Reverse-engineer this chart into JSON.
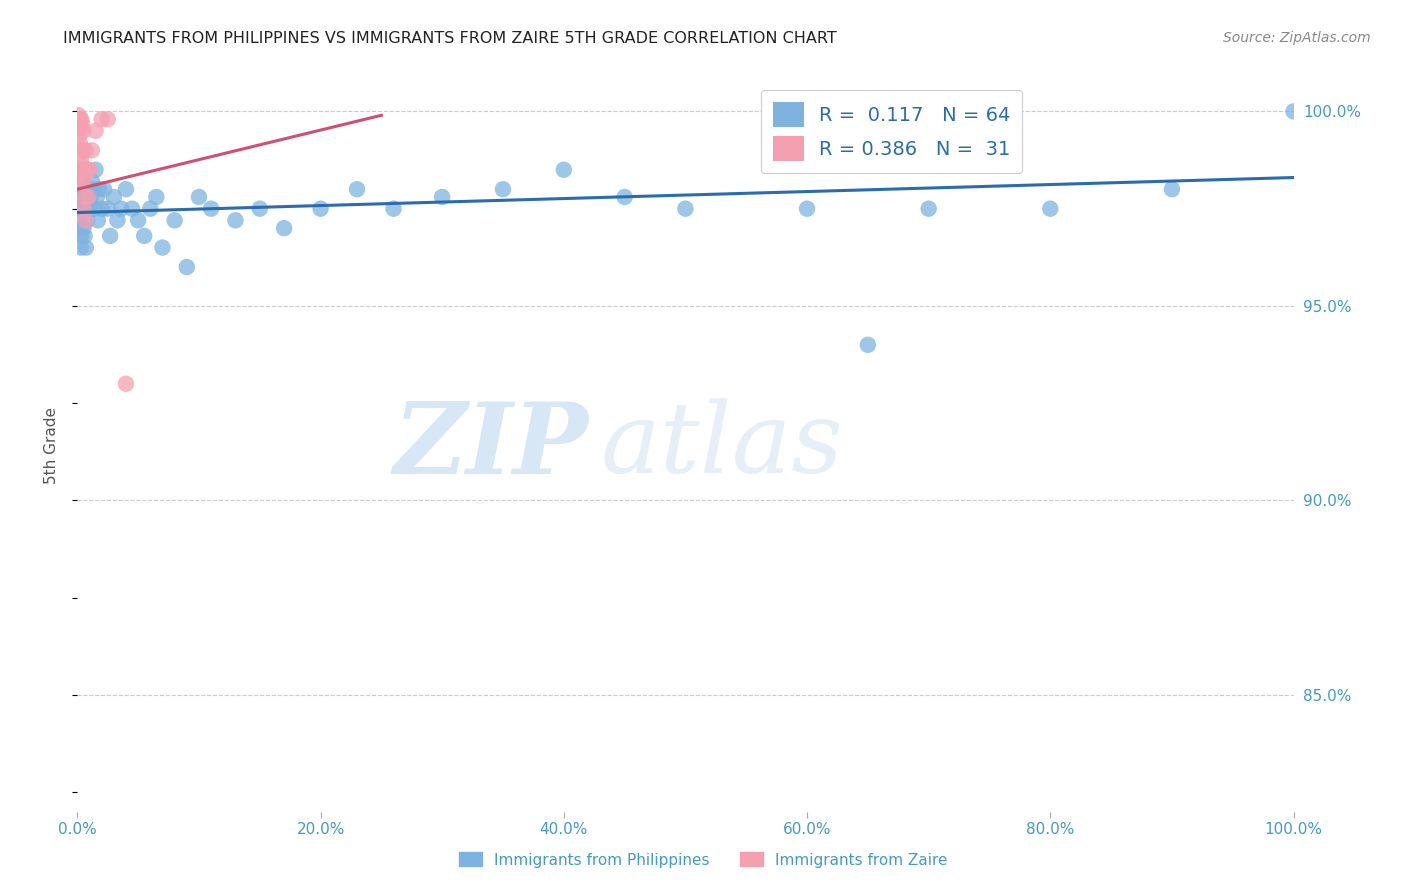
{
  "title": "IMMIGRANTS FROM PHILIPPINES VS IMMIGRANTS FROM ZAIRE 5TH GRADE CORRELATION CHART",
  "source": "Source: ZipAtlas.com",
  "xlabel_blue": "Immigrants from Philippines",
  "xlabel_pink": "Immigrants from Zaire",
  "ylabel": "5th Grade",
  "R_blue": 0.117,
  "N_blue": 64,
  "R_pink": 0.386,
  "N_pink": 31,
  "blue_color": "#7EB3E0",
  "pink_color": "#F4A0B0",
  "blue_line_color": "#2B6CB0",
  "pink_line_color": "#D05070",
  "x_blue": [
    0.001,
    0.001,
    0.002,
    0.002,
    0.002,
    0.003,
    0.003,
    0.003,
    0.003,
    0.004,
    0.004,
    0.005,
    0.005,
    0.006,
    0.006,
    0.007,
    0.007,
    0.008,
    0.008,
    0.009,
    0.01,
    0.011,
    0.012,
    0.013,
    0.014,
    0.015,
    0.016,
    0.017,
    0.018,
    0.02,
    0.022,
    0.025,
    0.027,
    0.03,
    0.033,
    0.036,
    0.04,
    0.045,
    0.05,
    0.055,
    0.06,
    0.065,
    0.07,
    0.08,
    0.09,
    0.1,
    0.11,
    0.13,
    0.15,
    0.17,
    0.2,
    0.23,
    0.26,
    0.3,
    0.35,
    0.4,
    0.45,
    0.5,
    0.6,
    0.65,
    0.7,
    0.8,
    0.9,
    1.0
  ],
  "y_blue": [
    0.978,
    0.972,
    0.98,
    0.975,
    0.985,
    0.968,
    0.975,
    0.98,
    0.965,
    0.978,
    0.982,
    0.97,
    0.975,
    0.98,
    0.968,
    0.965,
    0.978,
    0.975,
    0.972,
    0.98,
    0.975,
    0.978,
    0.982,
    0.98,
    0.975,
    0.985,
    0.978,
    0.972,
    0.98,
    0.975,
    0.98,
    0.975,
    0.968,
    0.978,
    0.972,
    0.975,
    0.98,
    0.975,
    0.972,
    0.968,
    0.975,
    0.978,
    0.965,
    0.972,
    0.96,
    0.978,
    0.975,
    0.972,
    0.975,
    0.97,
    0.975,
    0.98,
    0.975,
    0.978,
    0.98,
    0.985,
    0.978,
    0.975,
    0.975,
    0.94,
    0.975,
    0.975,
    0.98,
    1.0
  ],
  "x_pink": [
    0.001,
    0.001,
    0.001,
    0.002,
    0.002,
    0.002,
    0.002,
    0.003,
    0.003,
    0.003,
    0.003,
    0.003,
    0.004,
    0.004,
    0.004,
    0.005,
    0.005,
    0.005,
    0.005,
    0.006,
    0.006,
    0.007,
    0.007,
    0.008,
    0.009,
    0.01,
    0.012,
    0.015,
    0.02,
    0.025,
    0.04
  ],
  "y_pink": [
    0.997,
    0.998,
    0.999,
    0.996,
    0.994,
    0.992,
    0.998,
    0.99,
    0.988,
    0.985,
    0.996,
    0.998,
    0.982,
    0.986,
    0.997,
    0.975,
    0.982,
    0.99,
    0.995,
    0.978,
    0.985,
    0.972,
    0.99,
    0.985,
    0.978,
    0.985,
    0.99,
    0.995,
    0.998,
    0.998,
    0.93
  ],
  "blue_trend_x": [
    0.0,
    1.0
  ],
  "blue_trend_y": [
    0.974,
    0.983
  ],
  "pink_trend_x": [
    0.0,
    0.25
  ],
  "pink_trend_y": [
    0.98,
    0.999
  ],
  "xlim": [
    0.0,
    1.0
  ],
  "ylim": [
    0.82,
    1.008
  ],
  "yticks_right": [
    1.0,
    0.95,
    0.9,
    0.85
  ],
  "ytick_labels_right": [
    "100.0%",
    "95.0%",
    "90.0%",
    "85.0%"
  ],
  "xticks": [
    0.0,
    0.2,
    0.4,
    0.6,
    0.8,
    1.0
  ],
  "xtick_labels": [
    "0.0%",
    "20.0%",
    "40.0%",
    "60.0%",
    "80.0%",
    "100.0%"
  ],
  "grid_color": "#CCCCCC",
  "background_color": "#FFFFFF",
  "title_color": "#222222",
  "axis_color": "#4499CC",
  "watermark_zip": "ZIP",
  "watermark_atlas": "atlas"
}
